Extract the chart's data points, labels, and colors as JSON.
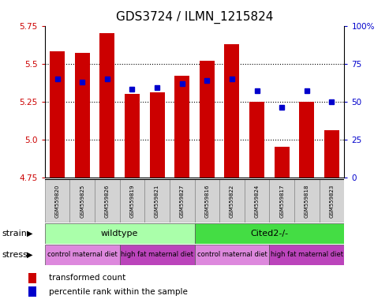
{
  "title": "GDS3724 / ILMN_1215824",
  "samples": [
    "GSM559820",
    "GSM559825",
    "GSM559826",
    "GSM559819",
    "GSM559821",
    "GSM559827",
    "GSM559816",
    "GSM559822",
    "GSM559824",
    "GSM559817",
    "GSM559818",
    "GSM559823"
  ],
  "red_values": [
    5.58,
    5.57,
    5.7,
    5.3,
    5.31,
    5.42,
    5.52,
    5.63,
    5.25,
    4.95,
    5.25,
    5.06
  ],
  "blue_percentiles": [
    65,
    63,
    65,
    58,
    59,
    62,
    64,
    65,
    57,
    46,
    57,
    50
  ],
  "y_min": 4.75,
  "y_max": 5.75,
  "y_ticks": [
    4.75,
    5.0,
    5.25,
    5.5,
    5.75
  ],
  "right_y_ticks": [
    0,
    25,
    50,
    75,
    100
  ],
  "right_y_labels": [
    "0",
    "25",
    "50",
    "75",
    "100%"
  ],
  "bar_color": "#cc0000",
  "dot_color": "#0000cc",
  "strain_groups": [
    {
      "label": "wildtype",
      "start": 0,
      "end": 6,
      "color": "#aaffaa"
    },
    {
      "label": "Cited2-/-",
      "start": 6,
      "end": 12,
      "color": "#44dd44"
    }
  ],
  "stress_groups": [
    {
      "label": "control maternal diet",
      "start": 0,
      "end": 3,
      "color": "#dd88dd"
    },
    {
      "label": "high fat maternal diet",
      "start": 3,
      "end": 6,
      "color": "#bb44bb"
    },
    {
      "label": "control maternal diet",
      "start": 6,
      "end": 9,
      "color": "#dd88dd"
    },
    {
      "label": "high fat maternal diet",
      "start": 9,
      "end": 12,
      "color": "#bb44bb"
    }
  ],
  "strain_label": "strain",
  "stress_label": "stress",
  "legend_red": "transformed count",
  "legend_blue": "percentile rank within the sample",
  "tick_label_color_left": "#cc0000",
  "tick_label_color_right": "#0000cc",
  "title_fontsize": 11,
  "sample_fontsize": 5,
  "group_fontsize": 8,
  "stress_fontsize": 6,
  "legend_fontsize": 7.5
}
